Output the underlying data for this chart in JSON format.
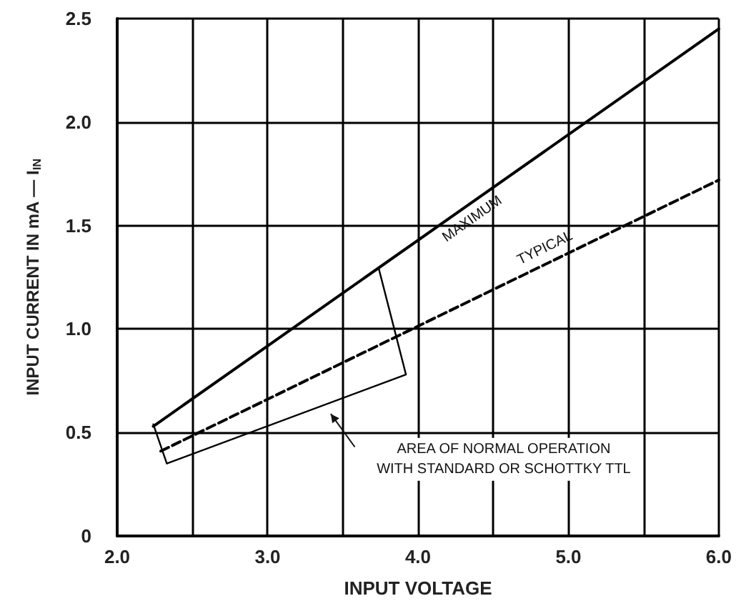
{
  "chart_data": {
    "type": "line",
    "xlabel": "INPUT VOLTAGE",
    "ylabel": "INPUT CURRENT IN mA — I$_{IN}$",
    "xlim": [
      2.0,
      6.0
    ],
    "xticks": [
      {
        "value": 2.0,
        "label": "2.0"
      },
      {
        "value": 2.5,
        "label": null
      },
      {
        "value": 3.0,
        "label": "3.0"
      },
      {
        "value": 3.5,
        "label": null
      },
      {
        "value": 4.0,
        "label": "4.0"
      },
      {
        "value": 4.5,
        "label": null
      },
      {
        "value": 5.0,
        "label": "5.0"
      },
      {
        "value": 5.5,
        "label": null
      },
      {
        "value": 6.0,
        "label": "6.0"
      }
    ],
    "ylim": [
      0,
      2.5
    ],
    "yticks": [
      0,
      0.5,
      {
        "value": 1.0,
        "label": "1.0"
      },
      1.5,
      {
        "value": 2.0,
        "label": "2.0"
      },
      2.5
    ],
    "grid": true,
    "marker": "none",
    "series": [
      {
        "name": "MAXIMUM",
        "color": "#000000",
        "line_style": "solid",
        "x": [
          2.24,
          6.0
        ],
        "values": [
          0.53,
          2.45
        ]
      },
      {
        "name": "TYPICAL",
        "color": "#000000",
        "line_style": "dashed",
        "x": [
          2.29,
          6.0
        ],
        "values": [
          0.41,
          1.72
        ]
      },
      {
        "color": "#000000",
        "line_style": "solid",
        "x": [
          3.74,
          3.92,
          2.33,
          2.24
        ],
        "values": [
          1.29,
          0.78,
          0.35,
          0.54
        ]
      }
    ],
    "annotations": [
      "AREA OF NORMAL OPERATION\nWITH STANDARD OR SCHOTTKY TTL"
    ]
  }
}
